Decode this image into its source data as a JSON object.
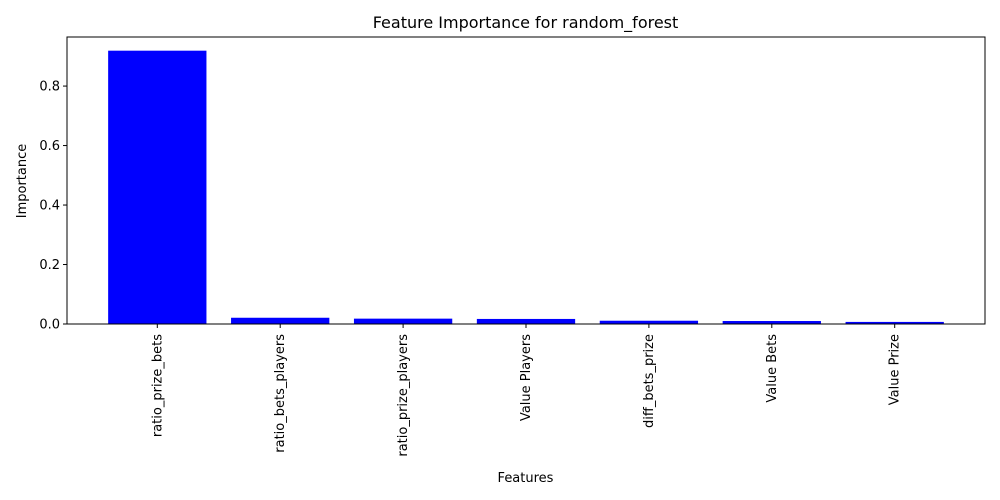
{
  "chart_data": {
    "type": "bar",
    "title": "Feature Importance for random_forest",
    "xlabel": "Features",
    "ylabel": "Importance",
    "categories": [
      "ratio_prize_bets",
      "ratio_bets_players",
      "ratio_prize_players",
      "Value Players",
      "diff_bets_prize",
      "Value Bets",
      "Value Prize"
    ],
    "values": [
      0.919,
      0.021,
      0.018,
      0.017,
      0.011,
      0.01,
      0.007
    ],
    "ylim": [
      0,
      0.965
    ],
    "yticks": [
      0.0,
      0.2,
      0.4,
      0.6,
      0.8
    ],
    "ytick_labels": [
      "0.0",
      "0.2",
      "0.4",
      "0.6",
      "0.8"
    ],
    "bar_color": "#0000ff",
    "grid": false
  }
}
